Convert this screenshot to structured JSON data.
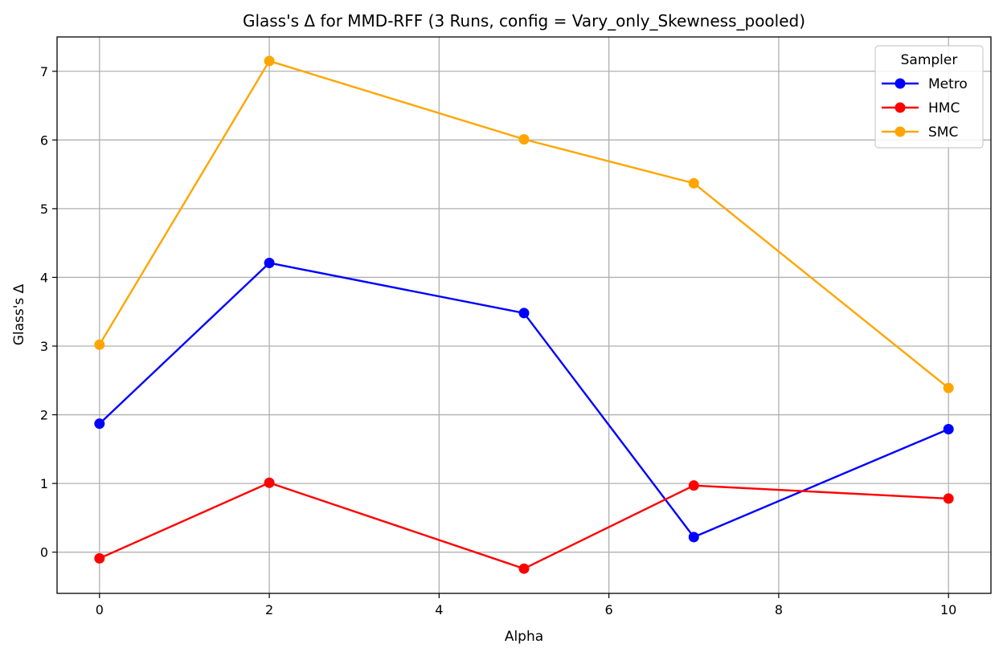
{
  "chart_data": {
    "type": "line",
    "title": "Glass's Δ for MMD-RFF (3 Runs, config = Vary_only_Skewness_pooled)",
    "xlabel": "Alpha",
    "ylabel": "Glass's Δ",
    "x": [
      0,
      2,
      5,
      7,
      10
    ],
    "xlim": [
      -0.5,
      10.5
    ],
    "ylim": [
      -0.6,
      7.5
    ],
    "xticks": [
      0,
      2,
      4,
      6,
      8,
      10
    ],
    "yticks": [
      0,
      1,
      2,
      3,
      4,
      5,
      6,
      7
    ],
    "grid": true,
    "legend": {
      "title": "Sampler",
      "placement": "top-right"
    },
    "series": [
      {
        "name": "Metro",
        "color": "#0000ff",
        "marker": "circle",
        "values": [
          1.87,
          4.21,
          3.48,
          0.22,
          1.79
        ]
      },
      {
        "name": "HMC",
        "color": "#ff0000",
        "marker": "circle",
        "values": [
          -0.09,
          1.01,
          -0.24,
          0.97,
          0.78
        ]
      },
      {
        "name": "SMC",
        "color": "#ffa500",
        "marker": "circle",
        "values": [
          3.02,
          7.15,
          6.01,
          5.37,
          2.39
        ]
      }
    ]
  }
}
